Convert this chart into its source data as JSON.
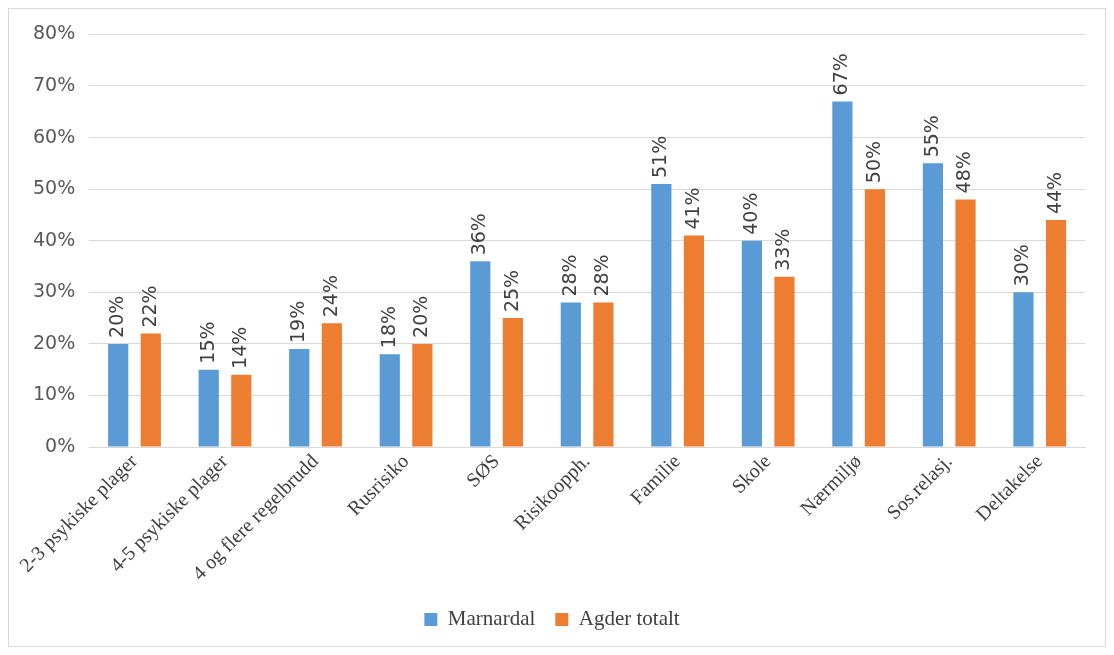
{
  "chart_data": {
    "type": "bar",
    "categories": [
      "2-3 psykiske plager",
      "4-5 psykiske plager",
      "4 og flere regelbrudd",
      "Rusrisiko",
      "SØS",
      "Risikoopph.",
      "Familie",
      "Skole",
      "Nærmiljø",
      "Sos.relasj.",
      "Deltakelse"
    ],
    "series": [
      {
        "name": "Marnardal",
        "color": "#5b9bd5",
        "values": [
          20,
          15,
          19,
          18,
          36,
          28,
          51,
          40,
          67,
          55,
          30
        ],
        "value_labels": [
          "20%",
          "15%",
          "19%",
          "18%",
          "36%",
          "28%",
          "51%",
          "40%",
          "67%",
          "55%",
          "30%"
        ]
      },
      {
        "name": "Agder totalt",
        "color": "#ed7d31",
        "values": [
          22,
          14,
          24,
          20,
          25,
          28,
          41,
          33,
          50,
          48,
          44
        ],
        "value_labels": [
          "22%",
          "14%",
          "24%",
          "20%",
          "25%",
          "28%",
          "41%",
          "33%",
          "50%",
          "48%",
          "44%"
        ]
      }
    ],
    "ylim": [
      0,
      80
    ],
    "yticks": [
      {
        "value": 0,
        "label": "0%"
      },
      {
        "value": 10,
        "label": "10%"
      },
      {
        "value": 20,
        "label": "20%"
      },
      {
        "value": 30,
        "label": "30%"
      },
      {
        "value": 40,
        "label": "40%"
      },
      {
        "value": 50,
        "label": "50%"
      },
      {
        "value": 60,
        "label": "60%"
      },
      {
        "value": 70,
        "label": "70%"
      },
      {
        "value": 80,
        "label": "80%"
      }
    ],
    "grid": "y",
    "legend": "bottom"
  }
}
